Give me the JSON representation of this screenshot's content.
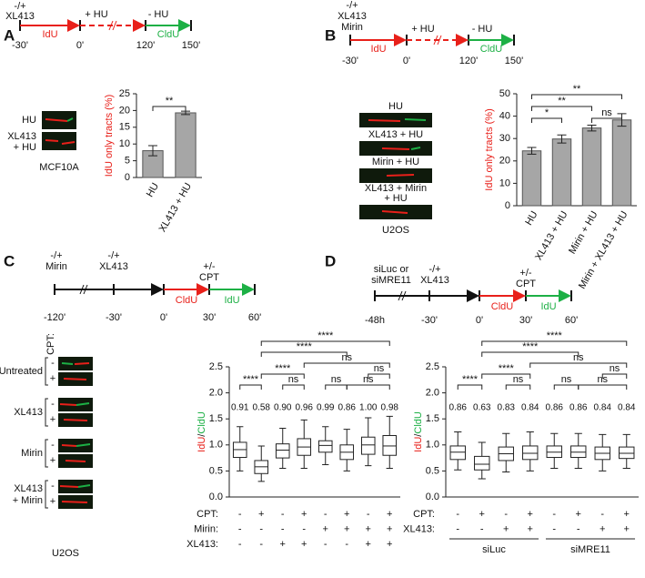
{
  "panels": [
    {
      "label": "A",
      "schematic": [
        "-/+",
        "XL413",
        "+ HU",
        "- HU",
        "IdU",
        "CldU",
        "-30'",
        "0'",
        "120'",
        "150'"
      ],
      "image_labels": [
        "HU",
        "XL413",
        "+ HU"
      ],
      "cell_line": "MCF10A"
    },
    {
      "label": "B",
      "schematic": [
        "-/+",
        "XL413",
        "Mirin",
        "+ HU",
        "- HU",
        "IdU",
        "CldU",
        "-30'",
        "0'",
        "120'",
        "150'"
      ],
      "image_labels": [
        "HU",
        "XL413 + HU",
        "Mirin + HU",
        "XL413 + Mirin",
        "+ HU"
      ],
      "cell_line": "U2OS"
    },
    {
      "label": "C",
      "schematic": [
        "-/+",
        "Mirin",
        "-/+",
        "XL413",
        "+/-",
        "CPT",
        "CldU",
        "IdU",
        "-120'",
        "-30'",
        "0'",
        "30'",
        "60'"
      ],
      "image_header": "CPT:",
      "image_labels": [
        "Untreated",
        "XL413",
        "Mirin",
        "XL413",
        "+ Mirin"
      ],
      "signs": [
        "-",
        "+"
      ],
      "cell_line": "U2OS"
    },
    {
      "label": "D",
      "schematic": [
        "siLuc or",
        "siMRE11",
        "-/+",
        "XL413",
        "+/-",
        "CPT",
        "CldU",
        "IdU",
        "-48h",
        "-30'",
        "0'",
        "30'",
        "60'"
      ]
    }
  ],
  "chart_data": [
    {
      "type": "bar",
      "ylabel": [
        "IdU only tracts (%)"
      ],
      "ylabel_colors": [
        "#e8201a"
      ],
      "categories": [
        "HU",
        "XL413 + HU"
      ],
      "values": [
        8,
        19.3
      ],
      "errors": [
        1.5,
        0.5
      ],
      "color": "#a6a6a6",
      "ylim": [
        0,
        25
      ],
      "yticks": [
        0,
        5,
        10,
        15,
        20,
        25
      ],
      "brackets": [
        {
          "from": 0,
          "to": 1,
          "label": "**"
        }
      ]
    },
    {
      "type": "bar",
      "ylabel": [
        "IdU only tracts (%)"
      ],
      "ylabel_colors": [
        "#e8201a"
      ],
      "categories": [
        "HU",
        "XL413 + HU",
        "Mirin + HU",
        "Mirin + XL413 + HU"
      ],
      "values": [
        24.5,
        29.8,
        34.7,
        38.3
      ],
      "errors": [
        1.5,
        1.8,
        1.3,
        2.8
      ],
      "color": "#a6a6a6",
      "ylim": [
        0,
        50
      ],
      "yticks": [
        0,
        10,
        20,
        30,
        40,
        50
      ],
      "brackets": [
        {
          "from": 0,
          "to": 1,
          "label": "*"
        },
        {
          "from": 2,
          "to": 3,
          "label": "ns"
        },
        {
          "from": 0,
          "to": 2,
          "label": "**"
        },
        {
          "from": 0,
          "to": 3,
          "label": "**"
        }
      ]
    },
    {
      "type": "box",
      "ylabel": [
        "IdU",
        "/",
        "CldU"
      ],
      "ylabel_colors": [
        "#e8201a",
        "#111111",
        "#1db045"
      ],
      "ylim": [
        0,
        2.5
      ],
      "yticks": [
        {
          "value": 0,
          "label": "0.0"
        },
        0.5,
        {
          "value": 1,
          "label": "1.0"
        },
        1.5,
        {
          "value": 2,
          "label": "2.0"
        },
        2.5
      ],
      "boxes": [
        {
          "whislo": 0.5,
          "q1": 0.76,
          "med": 0.91,
          "q3": 1.05,
          "whishi": 1.35,
          "med_label": "0.91"
        },
        {
          "whislo": 0.3,
          "q1": 0.45,
          "med": 0.58,
          "q3": 0.7,
          "whishi": 0.98,
          "med_label": "0.58"
        },
        {
          "whislo": 0.55,
          "q1": 0.75,
          "med": 0.9,
          "q3": 1.02,
          "whishi": 1.32,
          "med_label": "0.90"
        },
        {
          "whislo": 0.55,
          "q1": 0.8,
          "med": 0.96,
          "q3": 1.12,
          "whishi": 1.48,
          "med_label": "0.96"
        },
        {
          "whislo": 0.62,
          "q1": 0.86,
          "med": 0.99,
          "q3": 1.08,
          "whishi": 1.35,
          "med_label": "0.99"
        },
        {
          "whislo": 0.5,
          "q1": 0.72,
          "med": 0.86,
          "q3": 1.0,
          "whishi": 1.3,
          "med_label": "0.86"
        },
        {
          "whislo": 0.6,
          "q1": 0.82,
          "med": 1.0,
          "q3": 1.15,
          "whishi": 1.52,
          "med_label": "1.00"
        },
        {
          "whislo": 0.55,
          "q1": 0.8,
          "med": 0.98,
          "q3": 1.18,
          "whishi": 1.55,
          "med_label": "0.98"
        }
      ],
      "conditions": [
        {
          "name": "CPT:",
          "values": [
            "-",
            "+",
            "-",
            "+",
            "-",
            "+",
            "-",
            "+"
          ]
        },
        {
          "name": "Mirin:",
          "values": [
            "-",
            "-",
            "-",
            "-",
            "+",
            "+",
            "+",
            "+"
          ]
        },
        {
          "name": "XL413:",
          "values": [
            "-",
            "-",
            "+",
            "+",
            "-",
            "-",
            "+",
            "+"
          ]
        }
      ],
      "brackets": [
        {
          "from": 5,
          "to": 7,
          "label": "ns"
        },
        {
          "from": 0,
          "to": 1,
          "label": "****"
        },
        {
          "from": 2,
          "to": 3,
          "label": "ns"
        },
        {
          "from": 4,
          "to": 5,
          "label": "ns"
        },
        {
          "from": 6,
          "to": 7,
          "label": "ns"
        },
        {
          "from": 1,
          "to": 3,
          "label": "****"
        },
        {
          "from": 3,
          "to": 7,
          "label": "ns"
        },
        {
          "from": 1,
          "to": 5,
          "label": "****"
        },
        {
          "from": 1,
          "to": 7,
          "label": "****"
        }
      ]
    },
    {
      "type": "box",
      "ylabel": [
        "IdU",
        "/",
        "CldU"
      ],
      "ylabel_colors": [
        "#e8201a",
        "#111111",
        "#1db045"
      ],
      "ylim": [
        0,
        2.5
      ],
      "yticks": [
        {
          "value": 0,
          "label": "0.0"
        },
        0.5,
        {
          "value": 1,
          "label": "1.0"
        },
        1.5,
        {
          "value": 2,
          "label": "2.0"
        },
        2.5
      ],
      "boxes": [
        {
          "whislo": 0.52,
          "q1": 0.72,
          "med": 0.86,
          "q3": 0.98,
          "whishi": 1.25,
          "med_label": "0.86"
        },
        {
          "whislo": 0.35,
          "q1": 0.52,
          "med": 0.63,
          "q3": 0.78,
          "whishi": 1.05,
          "med_label": "0.63"
        },
        {
          "whislo": 0.48,
          "q1": 0.7,
          "med": 0.83,
          "q3": 0.96,
          "whishi": 1.22,
          "med_label": "0.83"
        },
        {
          "whislo": 0.5,
          "q1": 0.72,
          "med": 0.84,
          "q3": 0.98,
          "whishi": 1.25,
          "med_label": "0.84"
        },
        {
          "whislo": 0.55,
          "q1": 0.76,
          "med": 0.86,
          "q3": 0.98,
          "whishi": 1.22,
          "med_label": "0.86"
        },
        {
          "whislo": 0.55,
          "q1": 0.76,
          "med": 0.86,
          "q3": 0.98,
          "whishi": 1.22,
          "med_label": "0.86"
        },
        {
          "whislo": 0.5,
          "q1": 0.72,
          "med": 0.84,
          "q3": 0.96,
          "whishi": 1.2,
          "med_label": "0.84"
        },
        {
          "whislo": 0.55,
          "q1": 0.74,
          "med": 0.84,
          "q3": 0.96,
          "whishi": 1.2,
          "med_label": "0.84"
        }
      ],
      "conditions": [
        {
          "name": "CPT:",
          "values": [
            "-",
            "+",
            "-",
            "+",
            "-",
            "+",
            "-",
            "+"
          ]
        },
        {
          "name": "XL413:",
          "values": [
            "-",
            "-",
            "+",
            "+",
            "-",
            "-",
            "+",
            "+"
          ]
        }
      ],
      "groups": [
        {
          "name": "siLuc",
          "from": 0,
          "to": 3
        },
        {
          "name": "siMRE11",
          "from": 4,
          "to": 7
        }
      ],
      "brackets": [
        {
          "from": 5,
          "to": 7,
          "label": "ns"
        },
        {
          "from": 0,
          "to": 1,
          "label": "****"
        },
        {
          "from": 2,
          "to": 3,
          "label": "ns"
        },
        {
          "from": 4,
          "to": 5,
          "label": "ns"
        },
        {
          "from": 6,
          "to": 7,
          "label": "ns"
        },
        {
          "from": 1,
          "to": 3,
          "label": "****"
        },
        {
          "from": 3,
          "to": 7,
          "label": "ns"
        },
        {
          "from": 1,
          "to": 5,
          "label": "****"
        },
        {
          "from": 1,
          "to": 7,
          "label": "****"
        }
      ]
    }
  ]
}
